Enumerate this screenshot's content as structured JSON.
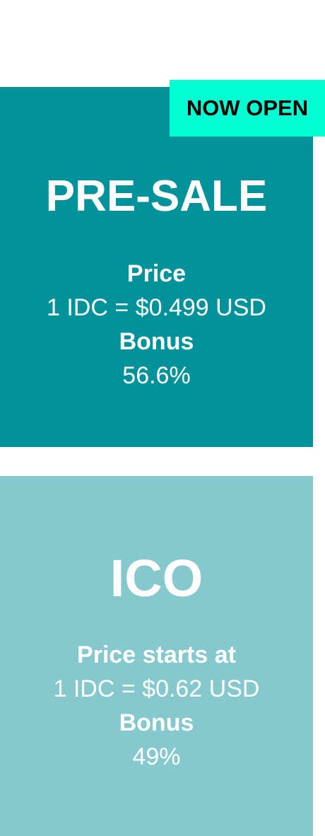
{
  "badge": {
    "text": "NOW OPEN"
  },
  "presale": {
    "title": "PRE-SALE",
    "price_label": "Price",
    "price_value": "1 IDC = $0.499 USD",
    "bonus_label": "Bonus",
    "bonus_value": "56.6%"
  },
  "ico": {
    "title": "ICO",
    "price_label": "Price starts at",
    "price_value": "1 IDC = $0.62 USD",
    "bonus_label": "Bonus",
    "bonus_value": "49%"
  },
  "colors": {
    "presale_bg": "#00929a",
    "ico_bg": "#85c9ce",
    "badge_bg": "#00ffd2",
    "text": "#ffffff",
    "badge_text": "#000000"
  }
}
